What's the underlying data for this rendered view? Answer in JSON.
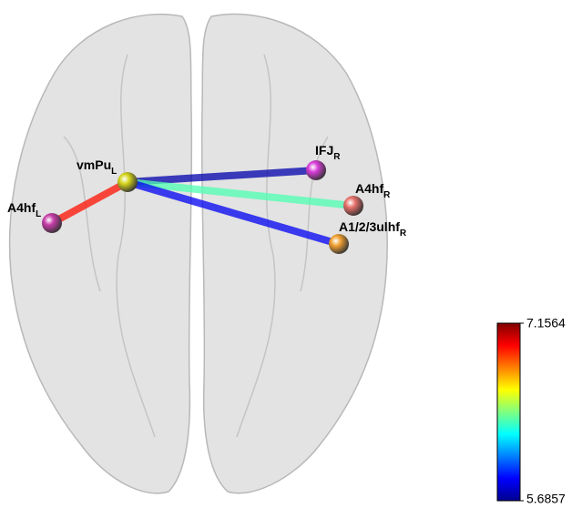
{
  "nodes": [
    {
      "label": "vmPu",
      "sub": "L",
      "color": "#d4d41a"
    },
    {
      "label": "A4hf",
      "sub": "L",
      "color": "#c83ca8"
    },
    {
      "label": "IFJ",
      "sub": "R",
      "color": "#d83cd8"
    },
    {
      "label": "A4hf",
      "sub": "R",
      "color": "#e8706a"
    },
    {
      "label": "A1/2/3ulhf",
      "sub": "R",
      "color": "#f0a030"
    }
  ],
  "edges": [
    {
      "value": 6.95
    },
    {
      "value": 5.75
    },
    {
      "value": 6.35
    },
    {
      "value": 5.85
    }
  ],
  "colorbar": {
    "max": 7.1564,
    "min": 5.6857
  }
}
